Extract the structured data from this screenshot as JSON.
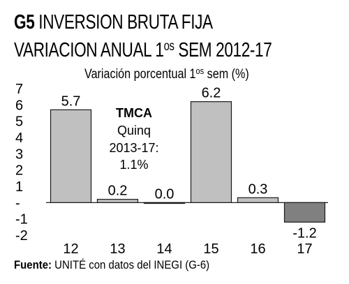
{
  "header": {
    "code": "G5",
    "title_line1": "INVERSION BRUTA FIJA",
    "title_line2_a": "VARIACION ANUAL  1",
    "title_line2_sup": "os",
    "title_line2_b": " SEM 2012-17"
  },
  "subtitle": {
    "text_a": "Variación porcentual 1",
    "sup": "os",
    "text_b": " sem (%)"
  },
  "chart_data": {
    "type": "bar",
    "categories": [
      "12",
      "13",
      "14",
      "15",
      "16",
      "17"
    ],
    "values": [
      5.7,
      0.2,
      0.0,
      6.2,
      0.3,
      -1.2
    ],
    "data_labels": [
      "5.7",
      "0.2",
      "0.0",
      "6.2",
      "0.3",
      "-1.2"
    ],
    "ylim": [
      -2,
      7
    ],
    "yticks": [
      "7",
      "6",
      "5",
      "4",
      "3",
      "2",
      "1",
      "-",
      "-1",
      "-2"
    ],
    "colors": {
      "positive": "#c0c0c0",
      "negative": "#808080",
      "stroke": "#1a1a1a"
    },
    "grid": false,
    "annotation": [
      "TMCA",
      "Quinq",
      "2013-17:",
      "1.1%"
    ]
  },
  "source": {
    "label": "Fuente:",
    "text": " UNITÉ con datos del INEGI (G-6)"
  }
}
